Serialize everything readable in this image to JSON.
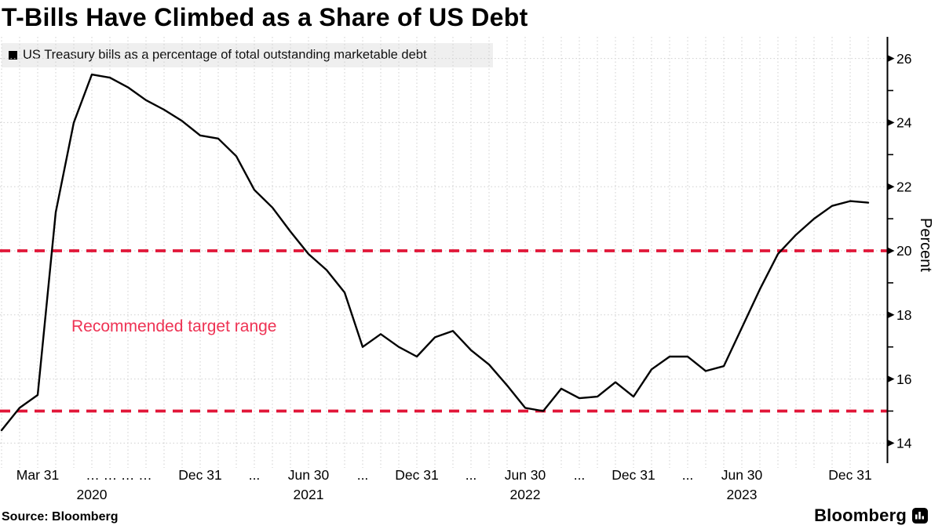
{
  "title": "T-Bills Have Climbed as a Share of US Debt",
  "legend": {
    "label": "US Treasury bills as a percentage of total outstanding marketable debt",
    "swatch_color": "#000000"
  },
  "annotation": "Recommended target range",
  "source": "Source: Bloomberg",
  "brand": "Bloomberg",
  "colors": {
    "line": "#000000",
    "target_line": "#e11638",
    "annotation_text": "#ee3354",
    "grid": "#cfcfcf",
    "legend_bg": "#efefef",
    "axis": "#000000"
  },
  "y_axis": {
    "title": "Percent",
    "major_ticks": [
      14,
      16,
      18,
      20,
      22,
      24,
      26
    ],
    "minor_ticks": [
      15,
      17,
      19,
      21,
      23,
      25
    ]
  },
  "x_axis": {
    "labels": [
      {
        "text": "Mar 31",
        "m": 2
      },
      {
        "text": "… … … …",
        "m": 6.5
      },
      {
        "text": "Dec 31",
        "m": 11
      },
      {
        "text": "...",
        "m": 14
      },
      {
        "text": "Jun 30",
        "m": 17
      },
      {
        "text": "...",
        "m": 20
      },
      {
        "text": "Dec 31",
        "m": 23
      },
      {
        "text": "...",
        "m": 26
      },
      {
        "text": "Jun 30",
        "m": 29
      },
      {
        "text": "...",
        "m": 32
      },
      {
        "text": "Dec 31",
        "m": 35
      },
      {
        "text": "...",
        "m": 38
      },
      {
        "text": "Jun 30",
        "m": 41
      },
      {
        "text": "Dec 31",
        "m": 47
      }
    ],
    "year_labels": [
      {
        "text": "2020",
        "m": 5.0
      },
      {
        "text": "2021",
        "m": 17
      },
      {
        "text": "2022",
        "m": 29
      },
      {
        "text": "2023",
        "m": 41
      }
    ]
  },
  "target_range": {
    "upper": 20,
    "lower": 15,
    "label": "Recommended target range"
  },
  "chart_data": {
    "type": "line",
    "title": "T-Bills Have Climbed as a Share of US Debt",
    "series": [
      {
        "name": "US Treasury bills as a percentage of total outstanding marketable debt",
        "values": [
          14.4,
          15.1,
          15.5,
          21.2,
          24.0,
          25.5,
          25.4,
          25.1,
          24.7,
          24.4,
          24.05,
          23.6,
          23.5,
          22.95,
          21.9,
          21.35,
          20.6,
          19.9,
          19.4,
          18.7,
          17.0,
          17.4,
          17.0,
          16.7,
          17.3,
          17.5,
          16.9,
          16.45,
          15.8,
          15.1,
          15.0,
          15.7,
          15.4,
          15.45,
          15.9,
          15.45,
          16.3,
          16.7,
          16.7,
          16.25,
          16.4,
          17.6,
          18.8,
          19.9,
          20.5,
          21.0,
          21.4,
          21.55,
          21.5
        ]
      }
    ],
    "x": [
      "2020-01",
      "2020-02",
      "2020-03",
      "2020-04",
      "2020-05",
      "2020-06",
      "2020-07",
      "2020-08",
      "2020-09",
      "2020-10",
      "2020-11",
      "2020-12",
      "2021-01",
      "2021-02",
      "2021-03",
      "2021-04",
      "2021-05",
      "2021-06",
      "2021-07",
      "2021-08",
      "2021-09",
      "2021-10",
      "2021-11",
      "2021-12",
      "2022-01",
      "2022-02",
      "2022-03",
      "2022-04",
      "2022-05",
      "2022-06",
      "2022-07",
      "2022-08",
      "2022-09",
      "2022-10",
      "2022-11",
      "2022-12",
      "2023-01",
      "2023-02",
      "2023-03",
      "2023-04",
      "2023-05",
      "2023-06",
      "2023-07",
      "2023-08",
      "2023-09",
      "2023-10",
      "2023-11",
      "2023-12",
      "2024-01"
    ],
    "xlabel": "",
    "ylabel": "Percent",
    "unit": "percent of total outstanding marketable debt",
    "ylim": [
      13.4,
      26.7
    ],
    "grid": true,
    "legend_position": "top-left",
    "reference_lines": [
      {
        "value": 20,
        "style": "dashed",
        "label": "Recommended target range upper bound"
      },
      {
        "value": 15,
        "style": "dashed",
        "label": "Recommended target range lower bound"
      }
    ]
  }
}
